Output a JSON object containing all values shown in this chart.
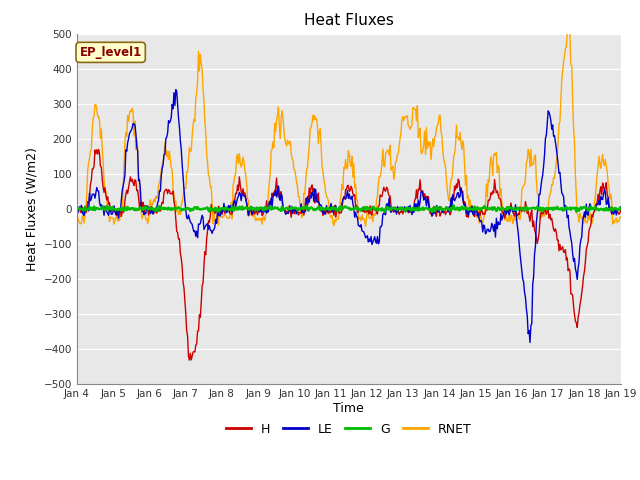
{
  "title": "Heat Fluxes",
  "xlabel": "Time",
  "ylabel": "Heat Fluxes (W/m2)",
  "ylim": [
    -500,
    500
  ],
  "yticks": [
    -500,
    -400,
    -300,
    -200,
    -100,
    0,
    100,
    200,
    300,
    400,
    500
  ],
  "xlim": [
    0,
    15
  ],
  "xtick_labels": [
    "Jan 4",
    "Jan 5",
    "Jan 6",
    "Jan 7",
    "Jan 8",
    "Jan 9",
    "Jan 10",
    "Jan 11",
    "Jan 12",
    "Jan 13",
    "Jan 14",
    "Jan 15",
    "Jan 16",
    "Jan 17",
    "Jan 18",
    "Jan 19"
  ],
  "annotation_label": "EP_level1",
  "annotation_color_bg": "#ffffcc",
  "annotation_color_border": "#8b6914",
  "colors": {
    "H": "#cc0000",
    "LE": "#0000cc",
    "G": "#00bb00",
    "RNET": "#ffa500"
  },
  "background_color": "#e8e8e8",
  "fig_background": "#ffffff",
  "grid_color": "#ffffff",
  "n_points": 600
}
